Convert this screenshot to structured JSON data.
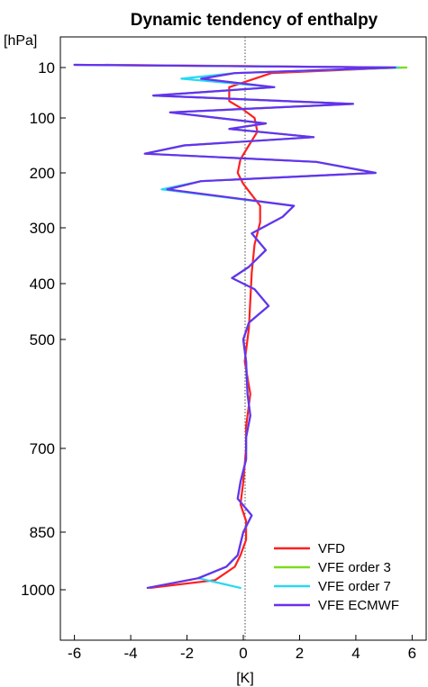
{
  "chart_data": {
    "type": "line",
    "title": "Dynamic tendency of enthalpy",
    "ylabel": "[hPa]",
    "xlabel": "[K]",
    "xlim": [
      -6.5,
      6.5
    ],
    "ylim": [
      0,
      1000
    ],
    "xticks": [
      -6,
      -4,
      -2,
      0,
      2,
      4,
      6
    ],
    "xtick_labels": [
      "-6",
      "-4",
      "-2",
      "0",
      "2",
      "4",
      "6"
    ],
    "yticks": [
      10,
      100,
      200,
      300,
      400,
      500,
      700,
      850,
      1000
    ],
    "ytick_labels": [
      "10",
      "100",
      "200",
      "300",
      "400",
      "500",
      "700",
      "850",
      "1000"
    ],
    "y_scale": "pressure (nonlinear, inverted)",
    "zero_line": "dotted",
    "legend_position": "bottom-right",
    "series": [
      {
        "name": "VFD",
        "color": "#ff1f1f",
        "points": [
          [
            -4.9,
            0
          ],
          [
            5.5,
            10
          ],
          [
            1.0,
            20
          ],
          [
            -0.5,
            45
          ],
          [
            -0.5,
            70
          ],
          [
            0.0,
            85
          ],
          [
            0.4,
            100
          ],
          [
            0.5,
            125
          ],
          [
            0.2,
            150
          ],
          [
            -0.1,
            175
          ],
          [
            -0.2,
            200
          ],
          [
            0.0,
            220
          ],
          [
            0.3,
            240
          ],
          [
            0.6,
            260
          ],
          [
            0.6,
            290
          ],
          [
            0.4,
            330
          ],
          [
            0.3,
            380
          ],
          [
            0.25,
            430
          ],
          [
            0.2,
            480
          ],
          [
            0.05,
            540
          ],
          [
            0.25,
            600
          ],
          [
            0.1,
            660
          ],
          [
            0.1,
            700
          ],
          [
            0.0,
            760
          ],
          [
            -0.1,
            800
          ],
          [
            0.1,
            830
          ],
          [
            0.1,
            870
          ],
          [
            -0.1,
            910
          ],
          [
            -0.3,
            940
          ],
          [
            -1.0,
            975
          ],
          [
            -3.3,
            995
          ]
        ]
      },
      {
        "name": "VFE order 3",
        "color": "#7ddc1f",
        "points": [
          [
            -6.0,
            0
          ],
          [
            5.8,
            10
          ],
          [
            -0.3,
            20
          ],
          [
            -1.5,
            30
          ],
          [
            1.1,
            45
          ],
          [
            -3.2,
            60
          ],
          [
            3.9,
            75
          ],
          [
            -2.6,
            90
          ],
          [
            -0.9,
            100
          ],
          [
            0.8,
            110
          ],
          [
            -0.5,
            120
          ],
          [
            2.5,
            135
          ],
          [
            -2.1,
            150
          ],
          [
            -3.5,
            165
          ],
          [
            2.6,
            180
          ],
          [
            4.7,
            200
          ],
          [
            -1.5,
            215
          ],
          [
            -2.7,
            230
          ],
          [
            1.8,
            260
          ],
          [
            1.4,
            280
          ],
          [
            0.3,
            310
          ],
          [
            0.8,
            340
          ],
          [
            0.2,
            370
          ],
          [
            -0.4,
            390
          ],
          [
            0.4,
            410
          ],
          [
            0.9,
            440
          ],
          [
            0.2,
            470
          ],
          [
            0.0,
            500
          ],
          [
            0.1,
            540
          ],
          [
            0.15,
            600
          ],
          [
            0.25,
            640
          ],
          [
            0.1,
            680
          ],
          [
            0.1,
            720
          ],
          [
            -0.1,
            760
          ],
          [
            -0.2,
            790
          ],
          [
            0.3,
            820
          ],
          [
            0.0,
            850
          ],
          [
            -0.1,
            880
          ],
          [
            -0.2,
            910
          ],
          [
            -0.6,
            940
          ],
          [
            -1.6,
            970
          ],
          [
            -3.4,
            995
          ]
        ]
      },
      {
        "name": "VFE order 7",
        "color": "#29d8f2",
        "points": [
          [
            -6.0,
            0
          ],
          [
            5.5,
            10
          ],
          [
            -0.3,
            20
          ],
          [
            -2.2,
            30
          ],
          [
            1.1,
            45
          ],
          [
            -3.2,
            60
          ],
          [
            3.9,
            75
          ],
          [
            -2.6,
            90
          ],
          [
            -0.9,
            100
          ],
          [
            0.8,
            110
          ],
          [
            -0.5,
            120
          ],
          [
            2.5,
            135
          ],
          [
            -2.1,
            150
          ],
          [
            -3.5,
            165
          ],
          [
            2.6,
            180
          ],
          [
            4.7,
            200
          ],
          [
            -1.5,
            215
          ],
          [
            -2.9,
            230
          ],
          [
            1.8,
            260
          ],
          [
            1.4,
            280
          ],
          [
            0.3,
            310
          ],
          [
            0.8,
            340
          ],
          [
            0.2,
            370
          ],
          [
            -0.4,
            390
          ],
          [
            0.4,
            410
          ],
          [
            0.9,
            440
          ],
          [
            0.2,
            470
          ],
          [
            0.0,
            500
          ],
          [
            0.1,
            540
          ],
          [
            0.15,
            600
          ],
          [
            0.25,
            640
          ],
          [
            0.1,
            680
          ],
          [
            0.1,
            720
          ],
          [
            -0.1,
            760
          ],
          [
            -0.2,
            790
          ],
          [
            0.3,
            820
          ],
          [
            0.0,
            850
          ],
          [
            -0.1,
            880
          ],
          [
            -0.2,
            910
          ],
          [
            -0.6,
            940
          ],
          [
            -1.6,
            970
          ],
          [
            -0.1,
            995
          ]
        ]
      },
      {
        "name": "VFE ECMWF",
        "color": "#6a2ff0",
        "points": [
          [
            -6.0,
            0
          ],
          [
            5.4,
            10
          ],
          [
            -0.3,
            20
          ],
          [
            -1.5,
            30
          ],
          [
            1.1,
            45
          ],
          [
            -3.2,
            60
          ],
          [
            3.9,
            75
          ],
          [
            -2.6,
            90
          ],
          [
            -0.9,
            100
          ],
          [
            0.8,
            110
          ],
          [
            -0.5,
            120
          ],
          [
            2.5,
            135
          ],
          [
            -2.1,
            150
          ],
          [
            -3.5,
            165
          ],
          [
            2.6,
            180
          ],
          [
            4.7,
            200
          ],
          [
            -1.5,
            215
          ],
          [
            -2.7,
            230
          ],
          [
            1.8,
            260
          ],
          [
            1.4,
            280
          ],
          [
            0.3,
            310
          ],
          [
            0.8,
            340
          ],
          [
            0.2,
            370
          ],
          [
            -0.4,
            390
          ],
          [
            0.4,
            410
          ],
          [
            0.9,
            440
          ],
          [
            0.2,
            470
          ],
          [
            0.0,
            500
          ],
          [
            0.1,
            540
          ],
          [
            0.15,
            600
          ],
          [
            0.25,
            640
          ],
          [
            0.1,
            680
          ],
          [
            0.1,
            720
          ],
          [
            -0.1,
            760
          ],
          [
            -0.2,
            790
          ],
          [
            0.3,
            820
          ],
          [
            0.0,
            850
          ],
          [
            -0.1,
            880
          ],
          [
            -0.2,
            910
          ],
          [
            -0.6,
            940
          ],
          [
            -1.6,
            970
          ],
          [
            -3.4,
            995
          ]
        ]
      }
    ]
  }
}
